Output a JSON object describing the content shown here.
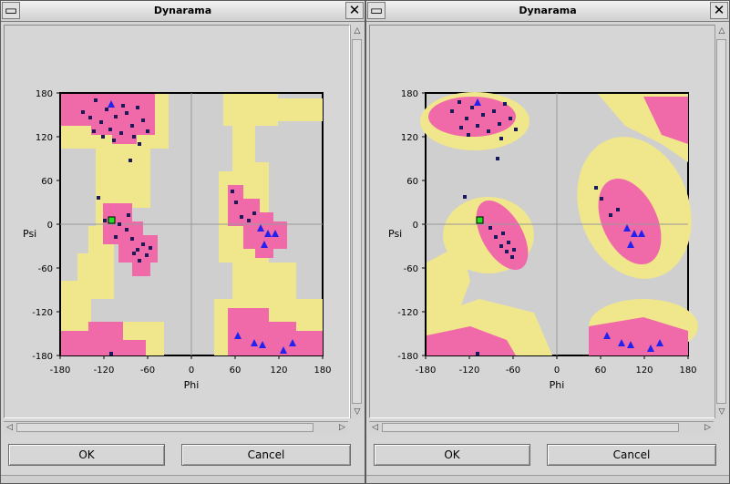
{
  "windows": [
    {
      "title": "Dynarama",
      "minimize_icon": "minimize-icon",
      "close_icon": "close-icon",
      "plot": {
        "x_label": "Phi",
        "y_label": "Psi",
        "x_ticks": [
          "-180",
          "-120",
          "-60",
          "0",
          "60",
          "120",
          "180"
        ],
        "y_ticks": [
          "180",
          "120",
          "60",
          "0",
          "-60",
          "-120",
          "-180"
        ]
      },
      "buttons": {
        "ok": "OK",
        "cancel": "Cancel"
      }
    },
    {
      "title": "Dynarama",
      "minimize_icon": "minimize-icon",
      "close_icon": "close-icon",
      "plot": {
        "x_label": "Phi",
        "y_label": "Psi",
        "x_ticks": [
          "-180",
          "-120",
          "-60",
          "0",
          "60",
          "120",
          "180"
        ],
        "y_ticks": [
          "180",
          "120",
          "60",
          "0",
          "-60",
          "-120",
          "-180"
        ]
      },
      "buttons": {
        "ok": "OK",
        "cancel": "Cancel"
      }
    }
  ],
  "colors": {
    "favoured": "#f06aa9",
    "allowed": "#f0e68c",
    "disallowed": "#cfcfcf",
    "residue": "#1a1a5a",
    "glycine": "#2222ee",
    "selected": "#22dd22"
  }
}
